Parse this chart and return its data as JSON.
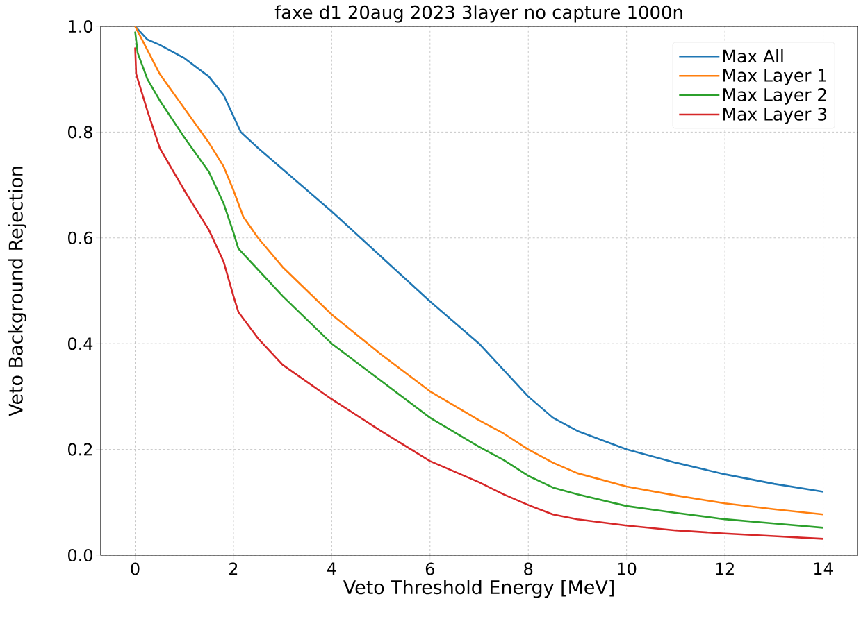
{
  "chart_data": {
    "type": "line",
    "title": "faxe d1 20aug 2023 3layer no capture 1000n",
    "xlabel": "Veto Threshold Energy [MeV]",
    "ylabel": "Veto Background Rejection",
    "xlim": [
      -0.7,
      14.7
    ],
    "ylim": [
      0,
      1
    ],
    "xticks": [
      0,
      2,
      4,
      6,
      8,
      10,
      12,
      14
    ],
    "yticks": [
      {
        "value": 0,
        "label": "0.0"
      },
      0.2,
      0.4,
      0.6,
      0.8,
      {
        "value": 1,
        "label": "1.0"
      }
    ],
    "grid": true,
    "legend": "top right",
    "marker": "none",
    "line_style": "solid",
    "series": [
      {
        "name": "Max All",
        "color": "#1f77b4",
        "x": [
          0,
          0.25,
          0.5,
          1,
          1.5,
          1.8,
          2,
          2.15,
          2.5,
          3,
          4,
          5,
          6,
          7,
          7.5,
          8,
          8.5,
          9,
          10,
          11,
          12,
          13,
          14
        ],
        "values": [
          1.0,
          0.975,
          0.965,
          0.94,
          0.905,
          0.87,
          0.83,
          0.8,
          0.77,
          0.73,
          0.65,
          0.565,
          0.48,
          0.4,
          0.35,
          0.3,
          0.26,
          0.235,
          0.2,
          0.175,
          0.153,
          0.135,
          0.12
        ]
      },
      {
        "name": "Max Layer 1",
        "color": "#ff7f0e",
        "x": [
          0,
          0.25,
          0.5,
          1,
          1.5,
          1.8,
          2,
          2.2,
          2.5,
          3,
          4,
          5,
          6,
          7,
          7.5,
          8,
          8.5,
          9,
          10,
          11,
          12,
          13,
          14
        ],
        "values": [
          1.0,
          0.955,
          0.91,
          0.845,
          0.78,
          0.735,
          0.69,
          0.64,
          0.6,
          0.545,
          0.455,
          0.38,
          0.31,
          0.255,
          0.23,
          0.2,
          0.175,
          0.155,
          0.13,
          0.113,
          0.098,
          0.087,
          0.077
        ]
      },
      {
        "name": "Max Layer 2",
        "color": "#2ca02c",
        "x": [
          0,
          0.05,
          0.25,
          0.5,
          1,
          1.5,
          1.8,
          2,
          2.1,
          2.5,
          3,
          4,
          5,
          6,
          7,
          7.5,
          8,
          8.5,
          9,
          10,
          11,
          12,
          13,
          14
        ],
        "values": [
          0.99,
          0.95,
          0.9,
          0.86,
          0.79,
          0.725,
          0.665,
          0.61,
          0.58,
          0.54,
          0.49,
          0.4,
          0.33,
          0.26,
          0.205,
          0.18,
          0.15,
          0.128,
          0.115,
          0.093,
          0.08,
          0.068,
          0.06,
          0.052
        ]
      },
      {
        "name": "Max Layer 3",
        "color": "#d62728",
        "x": [
          0,
          0.02,
          0.25,
          0.5,
          1,
          1.5,
          1.8,
          2,
          2.1,
          2.5,
          3,
          4,
          5,
          6,
          7,
          7.5,
          8,
          8.5,
          9,
          10,
          11,
          12,
          13,
          14
        ],
        "values": [
          0.96,
          0.91,
          0.84,
          0.77,
          0.69,
          0.615,
          0.555,
          0.49,
          0.46,
          0.41,
          0.36,
          0.295,
          0.235,
          0.178,
          0.138,
          0.115,
          0.095,
          0.077,
          0.068,
          0.056,
          0.047,
          0.041,
          0.036,
          0.031
        ]
      }
    ]
  }
}
